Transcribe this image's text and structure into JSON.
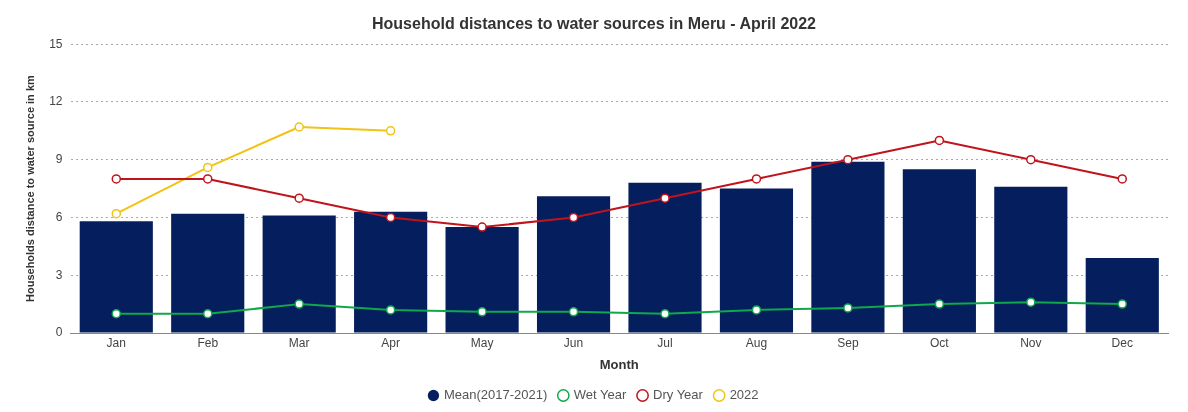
{
  "chart_data": {
    "type": "bar",
    "title": "Household distances to water sources in Meru - April 2022",
    "xlabel": "Month",
    "ylabel": "Households distance to water source in km",
    "categories": [
      "Jan",
      "Feb",
      "Mar",
      "Apr",
      "May",
      "Jun",
      "Jul",
      "Aug",
      "Sep",
      "Oct",
      "Nov",
      "Dec"
    ],
    "series": [
      {
        "name": "Mean(2017-2021)",
        "color": "#041e5e",
        "values": [
          5.8,
          6.2,
          6.1,
          6.3,
          5.5,
          7.1,
          7.8,
          7.5,
          8.9,
          8.5,
          7.6,
          3.9
        ]
      },
      {
        "name": "Wet Year",
        "type": "line",
        "color": "#0fa84a",
        "values": [
          1.0,
          1.0,
          1.5,
          1.2,
          1.1,
          1.1,
          1.0,
          1.2,
          1.3,
          1.5,
          1.6,
          1.5
        ]
      },
      {
        "name": "Dry Year",
        "type": "line",
        "color": "#c0141c",
        "values": [
          8,
          8,
          7,
          6,
          5.5,
          6,
          7,
          8,
          9,
          10,
          9,
          8
        ]
      },
      {
        "name": "2022",
        "type": "line",
        "color": "#f2c314",
        "values": [
          6.2,
          8.6,
          10.7,
          10.5,
          null,
          null,
          null,
          null,
          null,
          null,
          null,
          null
        ]
      }
    ],
    "ylim": [
      0,
      15
    ],
    "yticks": [
      0,
      3,
      6,
      9,
      12,
      15
    ],
    "grid": "y",
    "legend": "bottom",
    "marker": "circle"
  }
}
